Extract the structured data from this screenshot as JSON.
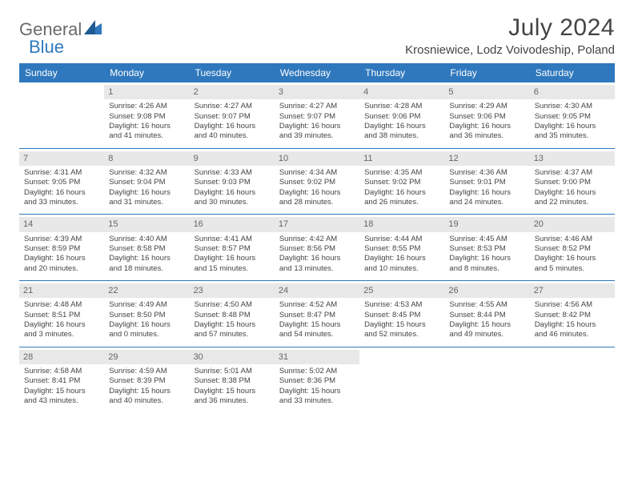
{
  "brand": {
    "part1": "General",
    "part2": "Blue"
  },
  "title": "July 2024",
  "location": "Krosniewice, Lodz Voivodeship, Poland",
  "colors": {
    "accent": "#2f78bd",
    "dow_bg": "#2f78bd",
    "dow_text": "#ffffff",
    "daynum_bg": "#e8e8e8",
    "daynum_text": "#666666",
    "body_text": "#444444",
    "logo_gray": "#6a6a6a"
  },
  "typography": {
    "title_fontsize": 30,
    "location_fontsize": 15,
    "dow_fontsize": 12,
    "daynum_fontsize": 11,
    "cell_fontsize": 9.5
  },
  "calendar": {
    "day_headers": [
      "Sunday",
      "Monday",
      "Tuesday",
      "Wednesday",
      "Thursday",
      "Friday",
      "Saturday"
    ],
    "weeks": [
      [
        {
          "n": "",
          "lines": [
            "",
            "",
            "",
            ""
          ]
        },
        {
          "n": "1",
          "lines": [
            "Sunrise: 4:26 AM",
            "Sunset: 9:08 PM",
            "Daylight: 16 hours",
            "and 41 minutes."
          ]
        },
        {
          "n": "2",
          "lines": [
            "Sunrise: 4:27 AM",
            "Sunset: 9:07 PM",
            "Daylight: 16 hours",
            "and 40 minutes."
          ]
        },
        {
          "n": "3",
          "lines": [
            "Sunrise: 4:27 AM",
            "Sunset: 9:07 PM",
            "Daylight: 16 hours",
            "and 39 minutes."
          ]
        },
        {
          "n": "4",
          "lines": [
            "Sunrise: 4:28 AM",
            "Sunset: 9:06 PM",
            "Daylight: 16 hours",
            "and 38 minutes."
          ]
        },
        {
          "n": "5",
          "lines": [
            "Sunrise: 4:29 AM",
            "Sunset: 9:06 PM",
            "Daylight: 16 hours",
            "and 36 minutes."
          ]
        },
        {
          "n": "6",
          "lines": [
            "Sunrise: 4:30 AM",
            "Sunset: 9:05 PM",
            "Daylight: 16 hours",
            "and 35 minutes."
          ]
        }
      ],
      [
        {
          "n": "7",
          "lines": [
            "Sunrise: 4:31 AM",
            "Sunset: 9:05 PM",
            "Daylight: 16 hours",
            "and 33 minutes."
          ]
        },
        {
          "n": "8",
          "lines": [
            "Sunrise: 4:32 AM",
            "Sunset: 9:04 PM",
            "Daylight: 16 hours",
            "and 31 minutes."
          ]
        },
        {
          "n": "9",
          "lines": [
            "Sunrise: 4:33 AM",
            "Sunset: 9:03 PM",
            "Daylight: 16 hours",
            "and 30 minutes."
          ]
        },
        {
          "n": "10",
          "lines": [
            "Sunrise: 4:34 AM",
            "Sunset: 9:02 PM",
            "Daylight: 16 hours",
            "and 28 minutes."
          ]
        },
        {
          "n": "11",
          "lines": [
            "Sunrise: 4:35 AM",
            "Sunset: 9:02 PM",
            "Daylight: 16 hours",
            "and 26 minutes."
          ]
        },
        {
          "n": "12",
          "lines": [
            "Sunrise: 4:36 AM",
            "Sunset: 9:01 PM",
            "Daylight: 16 hours",
            "and 24 minutes."
          ]
        },
        {
          "n": "13",
          "lines": [
            "Sunrise: 4:37 AM",
            "Sunset: 9:00 PM",
            "Daylight: 16 hours",
            "and 22 minutes."
          ]
        }
      ],
      [
        {
          "n": "14",
          "lines": [
            "Sunrise: 4:39 AM",
            "Sunset: 8:59 PM",
            "Daylight: 16 hours",
            "and 20 minutes."
          ]
        },
        {
          "n": "15",
          "lines": [
            "Sunrise: 4:40 AM",
            "Sunset: 8:58 PM",
            "Daylight: 16 hours",
            "and 18 minutes."
          ]
        },
        {
          "n": "16",
          "lines": [
            "Sunrise: 4:41 AM",
            "Sunset: 8:57 PM",
            "Daylight: 16 hours",
            "and 15 minutes."
          ]
        },
        {
          "n": "17",
          "lines": [
            "Sunrise: 4:42 AM",
            "Sunset: 8:56 PM",
            "Daylight: 16 hours",
            "and 13 minutes."
          ]
        },
        {
          "n": "18",
          "lines": [
            "Sunrise: 4:44 AM",
            "Sunset: 8:55 PM",
            "Daylight: 16 hours",
            "and 10 minutes."
          ]
        },
        {
          "n": "19",
          "lines": [
            "Sunrise: 4:45 AM",
            "Sunset: 8:53 PM",
            "Daylight: 16 hours",
            "and 8 minutes."
          ]
        },
        {
          "n": "20",
          "lines": [
            "Sunrise: 4:46 AM",
            "Sunset: 8:52 PM",
            "Daylight: 16 hours",
            "and 5 minutes."
          ]
        }
      ],
      [
        {
          "n": "21",
          "lines": [
            "Sunrise: 4:48 AM",
            "Sunset: 8:51 PM",
            "Daylight: 16 hours",
            "and 3 minutes."
          ]
        },
        {
          "n": "22",
          "lines": [
            "Sunrise: 4:49 AM",
            "Sunset: 8:50 PM",
            "Daylight: 16 hours",
            "and 0 minutes."
          ]
        },
        {
          "n": "23",
          "lines": [
            "Sunrise: 4:50 AM",
            "Sunset: 8:48 PM",
            "Daylight: 15 hours",
            "and 57 minutes."
          ]
        },
        {
          "n": "24",
          "lines": [
            "Sunrise: 4:52 AM",
            "Sunset: 8:47 PM",
            "Daylight: 15 hours",
            "and 54 minutes."
          ]
        },
        {
          "n": "25",
          "lines": [
            "Sunrise: 4:53 AM",
            "Sunset: 8:45 PM",
            "Daylight: 15 hours",
            "and 52 minutes."
          ]
        },
        {
          "n": "26",
          "lines": [
            "Sunrise: 4:55 AM",
            "Sunset: 8:44 PM",
            "Daylight: 15 hours",
            "and 49 minutes."
          ]
        },
        {
          "n": "27",
          "lines": [
            "Sunrise: 4:56 AM",
            "Sunset: 8:42 PM",
            "Daylight: 15 hours",
            "and 46 minutes."
          ]
        }
      ],
      [
        {
          "n": "28",
          "lines": [
            "Sunrise: 4:58 AM",
            "Sunset: 8:41 PM",
            "Daylight: 15 hours",
            "and 43 minutes."
          ]
        },
        {
          "n": "29",
          "lines": [
            "Sunrise: 4:59 AM",
            "Sunset: 8:39 PM",
            "Daylight: 15 hours",
            "and 40 minutes."
          ]
        },
        {
          "n": "30",
          "lines": [
            "Sunrise: 5:01 AM",
            "Sunset: 8:38 PM",
            "Daylight: 15 hours",
            "and 36 minutes."
          ]
        },
        {
          "n": "31",
          "lines": [
            "Sunrise: 5:02 AM",
            "Sunset: 8:36 PM",
            "Daylight: 15 hours",
            "and 33 minutes."
          ]
        },
        {
          "n": "",
          "lines": [
            "",
            "",
            "",
            ""
          ]
        },
        {
          "n": "",
          "lines": [
            "",
            "",
            "",
            ""
          ]
        },
        {
          "n": "",
          "lines": [
            "",
            "",
            "",
            ""
          ]
        }
      ]
    ]
  }
}
